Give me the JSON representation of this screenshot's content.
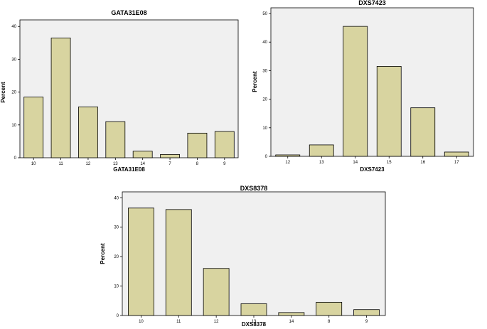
{
  "colors": {
    "bar_fill": "#d8d4a0",
    "plot_bg": "#f0f0f0"
  },
  "chart_data": [
    {
      "type": "bar",
      "title": "GATA31E08",
      "xlabel": "GATA31E08",
      "ylabel": "Percent",
      "categories": [
        "10",
        "11",
        "12",
        "13",
        "14",
        "7",
        "8",
        "9"
      ],
      "values": [
        18.5,
        36.5,
        15.5,
        11,
        2,
        1,
        7.5,
        8
      ],
      "ylim": [
        0,
        42
      ],
      "yticks": [
        "0",
        "10",
        "20",
        "30",
        "40"
      ],
      "grid": false,
      "legend": "none"
    },
    {
      "type": "bar",
      "title": "DXS7423",
      "xlabel": "DXS7423",
      "ylabel": "Percent",
      "categories": [
        "12",
        "13",
        "14",
        "15",
        "16",
        "17"
      ],
      "values": [
        0.5,
        4,
        45.5,
        31.5,
        17,
        1.5
      ],
      "ylim": [
        0,
        52
      ],
      "yticks": [
        "0",
        "10",
        "20",
        "30",
        "40",
        "50"
      ],
      "grid": false,
      "legend": "none"
    },
    {
      "type": "bar",
      "title": "DXS8378",
      "xlabel": "DXS8378",
      "ylabel": "Percent",
      "categories": [
        "10",
        "11",
        "12",
        "13",
        "14",
        "8",
        "9"
      ],
      "values": [
        36.5,
        36,
        16,
        4,
        1,
        4.5,
        2
      ],
      "ylim": [
        0,
        42
      ],
      "yticks": [
        "0",
        "10",
        "20",
        "30",
        "40"
      ],
      "grid": false,
      "legend": "none"
    }
  ]
}
